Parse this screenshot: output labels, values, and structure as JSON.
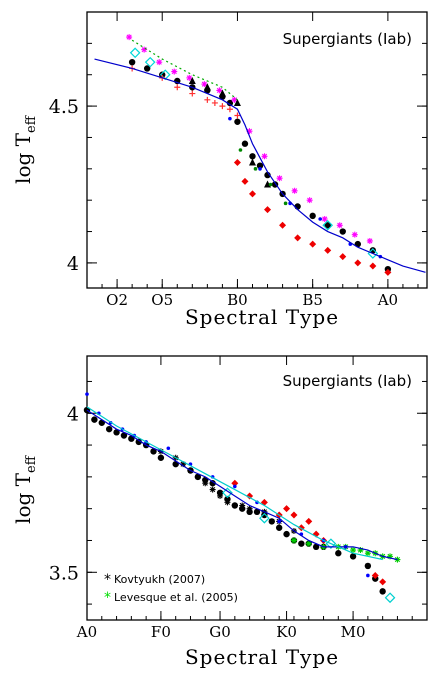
{
  "chart_data": [
    {
      "type": "scatter",
      "title": "Supergiants (Iab)",
      "xlabel": "Spectral Type",
      "ylabel_main": "log T",
      "ylabel_sub": "eff",
      "xlim": [
        0,
        22.6
      ],
      "ylim": [
        3.92,
        4.8
      ],
      "x_ticks": [
        {
          "x": 2,
          "label": "O2"
        },
        {
          "x": 5,
          "label": "O5"
        },
        {
          "x": 10,
          "label": "B0"
        },
        {
          "x": 15,
          "label": "B5"
        },
        {
          "x": 20,
          "label": "A0"
        }
      ],
      "y_ticks": [
        {
          "y": 4.0,
          "label": "4"
        },
        {
          "y": 4.5,
          "label": "4.5"
        }
      ],
      "grid": false,
      "series": [
        {
          "marker": "circle",
          "color": "#000000",
          "x": [
            3,
            4,
            5,
            6,
            7,
            8,
            9,
            9.5,
            10,
            10.5,
            11,
            11.5,
            12,
            12.5,
            13,
            14,
            15,
            16,
            17,
            18,
            19,
            20
          ],
          "y": [
            4.64,
            4.62,
            4.6,
            4.58,
            4.56,
            4.55,
            4.53,
            4.51,
            4.45,
            4.38,
            4.34,
            4.31,
            4.28,
            4.25,
            4.22,
            4.18,
            4.15,
            4.12,
            4.1,
            4.06,
            4.04,
            3.98
          ]
        },
        {
          "marker": "star",
          "color": "#ff00ff",
          "x": [
            2.8,
            3.8,
            4.8,
            5.8,
            6.8,
            7.8,
            8.8,
            9.8,
            10.8,
            11.8,
            12.8,
            13.8,
            14.8,
            15.8,
            16.8,
            17.8,
            18.8
          ],
          "y": [
            4.72,
            4.68,
            4.64,
            4.61,
            4.59,
            4.57,
            4.55,
            4.52,
            4.42,
            4.34,
            4.27,
            4.23,
            4.2,
            4.14,
            4.12,
            4.09,
            4.07
          ]
        },
        {
          "marker": "diamond-open",
          "color": "#00d8d8",
          "x": [
            3.2,
            4.2,
            5.2,
            16,
            19
          ],
          "y": [
            4.67,
            4.64,
            4.6,
            4.12,
            4.03
          ]
        },
        {
          "marker": "plus",
          "color": "#ff3030",
          "x": [
            3,
            5,
            6,
            7,
            8,
            8.5,
            9,
            9.5,
            10
          ],
          "y": [
            4.62,
            4.59,
            4.56,
            4.54,
            4.52,
            4.51,
            4.5,
            4.49,
            4.47
          ]
        },
        {
          "marker": "diamond",
          "color": "#ee0000",
          "x": [
            10,
            10.5,
            11,
            12,
            13,
            14,
            15,
            16,
            17,
            18,
            19,
            20
          ],
          "y": [
            4.32,
            4.26,
            4.22,
            4.17,
            4.12,
            4.08,
            4.06,
            4.04,
            4.02,
            4.0,
            3.99,
            3.97
          ]
        },
        {
          "marker": "triangle",
          "color": "#000000",
          "x": [
            7,
            8,
            9,
            10,
            11,
            12
          ],
          "y": [
            4.58,
            4.56,
            4.54,
            4.51,
            4.32,
            4.25
          ]
        },
        {
          "marker": "dot",
          "color": "#0000ff",
          "x": [
            9.5,
            11.5,
            13.5,
            15.5,
            17.5,
            19.5
          ],
          "y": [
            4.46,
            4.3,
            4.19,
            4.14,
            4.06,
            4.02
          ]
        },
        {
          "marker": "dot",
          "color": "#008800",
          "x": [
            10.2,
            11.2,
            12.2,
            13.2
          ],
          "y": [
            4.36,
            4.3,
            4.25,
            4.19
          ]
        },
        {
          "marker": "line",
          "color": "#0000cc",
          "x": [
            0.5,
            3,
            5,
            7,
            8,
            9,
            10,
            10.5,
            11,
            12,
            13,
            14,
            15,
            16,
            17,
            18,
            19,
            20,
            21,
            22.5
          ],
          "y": [
            4.65,
            4.62,
            4.59,
            4.56,
            4.54,
            4.52,
            4.49,
            4.44,
            4.38,
            4.29,
            4.22,
            4.17,
            4.13,
            4.1,
            4.08,
            4.05,
            4.03,
            4.01,
            3.99,
            3.97
          ]
        },
        {
          "marker": "dashed",
          "color": "#00aa00",
          "x": [
            3,
            5,
            7,
            9,
            10
          ],
          "y": [
            4.71,
            4.65,
            4.6,
            4.56,
            4.52
          ]
        }
      ]
    },
    {
      "type": "scatter",
      "title": "Supergiants (Iab)",
      "xlabel": "Spectral Type",
      "ylabel_main": "log T",
      "ylabel_sub": "eff",
      "xlim": [
        0,
        23
      ],
      "ylim": [
        3.35,
        4.18
      ],
      "x_ticks": [
        {
          "x": 0,
          "label": "A0"
        },
        {
          "x": 5,
          "label": "F0"
        },
        {
          "x": 9,
          "label": "G0"
        },
        {
          "x": 13.5,
          "label": "K0"
        },
        {
          "x": 18,
          "label": "M0"
        }
      ],
      "y_ticks": [
        {
          "y": 3.5,
          "label": "3.5"
        },
        {
          "y": 4.0,
          "label": "4"
        }
      ],
      "grid": false,
      "legend": [
        {
          "marker": "star",
          "color": "#000000",
          "label": "Kovtyukh (2007)"
        },
        {
          "marker": "star",
          "color": "#00dd00",
          "label": "Levesque et al. (2005)"
        }
      ],
      "series": [
        {
          "marker": "circle",
          "color": "#000000",
          "x": [
            0,
            0.5,
            1,
            1.5,
            2,
            2.5,
            3,
            3.5,
            4,
            4.5,
            5,
            6,
            7,
            7.5,
            8,
            8.5,
            9,
            9.5,
            10,
            10.5,
            11,
            11.5,
            12,
            12.5,
            13,
            13.5,
            14,
            14.5,
            15,
            15.5,
            16,
            17,
            18,
            19,
            19.5,
            20
          ],
          "y": [
            4.01,
            3.98,
            3.97,
            3.95,
            3.94,
            3.93,
            3.92,
            3.91,
            3.9,
            3.88,
            3.86,
            3.84,
            3.82,
            3.8,
            3.79,
            3.78,
            3.75,
            3.73,
            3.71,
            3.7,
            3.69,
            3.69,
            3.68,
            3.66,
            3.64,
            3.62,
            3.6,
            3.59,
            3.59,
            3.58,
            3.58,
            3.56,
            3.55,
            3.52,
            3.48,
            3.44
          ]
        },
        {
          "marker": "star",
          "color": "#000000",
          "x": [
            4,
            5,
            6,
            6.5,
            7,
            7.5,
            8,
            8.5,
            9,
            9.5,
            10,
            10.5,
            11,
            12,
            13,
            14
          ],
          "y": [
            3.9,
            3.88,
            3.86,
            3.84,
            3.82,
            3.8,
            3.78,
            3.76,
            3.74,
            3.72,
            3.71,
            3.71,
            3.7,
            3.69,
            3.66,
            3.63
          ]
        },
        {
          "marker": "star",
          "color": "#00cc00",
          "x": [
            14,
            15,
            16,
            17,
            17.5,
            18,
            18.5,
            19,
            19.5,
            20,
            20.5,
            21
          ],
          "y": [
            3.6,
            3.59,
            3.58,
            3.58,
            3.58,
            3.57,
            3.57,
            3.56,
            3.56,
            3.55,
            3.55,
            3.54
          ]
        },
        {
          "marker": "diamond",
          "color": "#ee0000",
          "x": [
            10,
            11,
            12,
            13,
            13.5,
            14,
            14.5,
            15,
            15.5,
            16,
            19.5,
            20
          ],
          "y": [
            3.78,
            3.74,
            3.72,
            3.68,
            3.7,
            3.68,
            3.64,
            3.66,
            3.62,
            3.6,
            3.49,
            3.47
          ]
        },
        {
          "marker": "dot",
          "color": "#0000ff",
          "x": [
            0,
            0.8,
            1.6,
            2.4,
            3.2,
            4,
            5.5,
            7,
            8.5,
            10,
            11.5,
            13,
            14.5,
            16,
            17.5,
            19
          ],
          "y": [
            4.06,
            4.0,
            3.97,
            3.95,
            3.93,
            3.91,
            3.89,
            3.84,
            3.8,
            3.77,
            3.72,
            3.66,
            3.62,
            3.6,
            3.58,
            3.49
          ]
        },
        {
          "marker": "diamond-open",
          "color": "#00d0d0",
          "x": [
            9.5,
            12,
            16.5,
            20.5
          ],
          "y": [
            3.75,
            3.67,
            3.59,
            3.42
          ]
        },
        {
          "marker": "line",
          "color": "#0000cc",
          "x": [
            0,
            1,
            2,
            3,
            4,
            5,
            6,
            7,
            8,
            9,
            10,
            11,
            12,
            13,
            14,
            15,
            16,
            17,
            18,
            19,
            20,
            21
          ],
          "y": [
            4.01,
            3.98,
            3.95,
            3.93,
            3.9,
            3.88,
            3.85,
            3.82,
            3.8,
            3.77,
            3.74,
            3.71,
            3.69,
            3.67,
            3.63,
            3.6,
            3.58,
            3.58,
            3.58,
            3.57,
            3.55,
            3.54
          ]
        },
        {
          "marker": "line",
          "color": "#00cccc",
          "x": [
            0,
            2,
            4,
            6,
            8,
            10,
            12,
            14,
            16,
            18,
            20
          ],
          "y": [
            4.02,
            3.96,
            3.91,
            3.86,
            3.81,
            3.76,
            3.71,
            3.65,
            3.6,
            3.56,
            3.54
          ]
        }
      ]
    }
  ]
}
